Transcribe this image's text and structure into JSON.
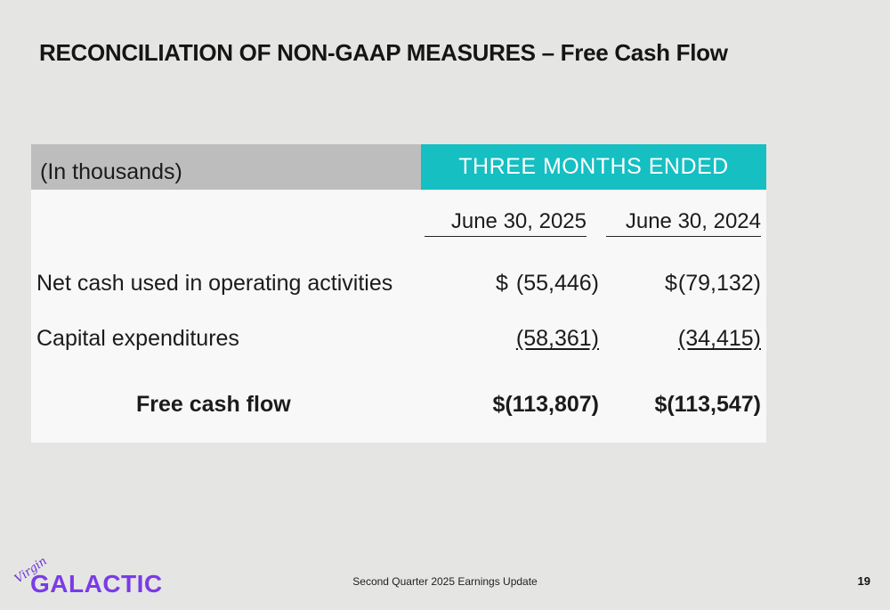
{
  "title": "RECONCILIATION OF NON-GAAP MEASURES – Free Cash Flow",
  "table": {
    "unit_label": "(In thousands)",
    "period_header": "THREE MONTHS ENDED",
    "columns": [
      "June 30, 2025",
      "June 30, 2024"
    ],
    "rows": [
      {
        "label": "Net cash used in operating activities",
        "currency": "$",
        "values": [
          "(55,446)",
          "(79,132)"
        ]
      },
      {
        "label": "Capital expenditures",
        "values": [
          "(58,361)",
          "(34,415)"
        ]
      },
      {
        "label": "Free cash flow",
        "values": [
          "$(113,807)",
          "$(113,547)"
        ]
      }
    ]
  },
  "footer": {
    "text": "Second Quarter 2025 Earnings Update",
    "page_number": "19"
  },
  "logo": {
    "script": "Virgin",
    "brand": "GALACTIC",
    "color": "#7a3be6"
  },
  "colors": {
    "accent": "#15bfc2",
    "header_gray": "#bdbdbd",
    "background": "#e5e5e3"
  }
}
